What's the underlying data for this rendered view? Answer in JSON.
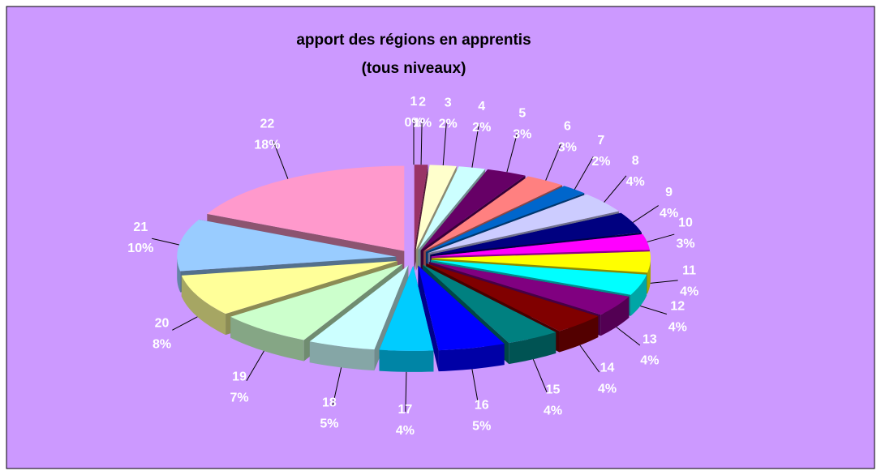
{
  "chart_data": {
    "type": "pie3d",
    "title": "apport des régions en apprentis",
    "subtitle": "(tous niveaux)",
    "categories": [
      "1",
      "2",
      "3",
      "4",
      "5",
      "6",
      "7",
      "8",
      "9",
      "10",
      "11",
      "12",
      "13",
      "14",
      "15",
      "16",
      "17",
      "18",
      "19",
      "20",
      "21",
      "22"
    ],
    "values": [
      0,
      1,
      2,
      2,
      3,
      3,
      2,
      4,
      4,
      3,
      4,
      4,
      4,
      4,
      4,
      5,
      4,
      5,
      7,
      8,
      10,
      18
    ],
    "value_labels": [
      "0%",
      "1%",
      "2%",
      "2%",
      "3%",
      "3%",
      "2%",
      "4%",
      "4%",
      "3%",
      "4%",
      "4%",
      "4%",
      "4%",
      "4%",
      "5%",
      "4%",
      "5%",
      "7%",
      "8%",
      "10%",
      "18%"
    ],
    "colors": [
      "#9999ff",
      "#993366",
      "#ffffcc",
      "#ccffff",
      "#660066",
      "#ff8080",
      "#0066cc",
      "#ccccff",
      "#000080",
      "#ff00ff",
      "#ffff00",
      "#00ffff",
      "#800080",
      "#800000",
      "#008080",
      "#0000ff",
      "#00ccff",
      "#ccffff",
      "#ccffcc",
      "#ffff99",
      "#99ccff",
      "#ff99cc"
    ]
  }
}
